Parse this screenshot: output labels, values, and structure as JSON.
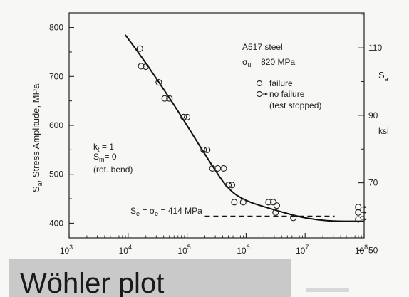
{
  "caption": "Wöhler plot",
  "chart_data": {
    "type": "scatter",
    "x_scale": "log",
    "xlim_exp": [
      3,
      8
    ],
    "x_tick_labels": [
      "10",
      "10",
      "10",
      "10",
      "10",
      "10"
    ],
    "x_tick_exponents": [
      "3",
      "4",
      "5",
      "6",
      "7",
      "8"
    ],
    "ylabel": "S",
    "ylabel_sub": "a",
    "ylabel_rest": ", Stress Amplitude, MPa",
    "ylim": [
      370,
      830
    ],
    "y_ticks": [
      400,
      500,
      600,
      700,
      800
    ],
    "y_tick_labels": [
      "400",
      "500",
      "600",
      "700",
      "800"
    ],
    "right_axis": {
      "label": "S",
      "label_sub": "a",
      "unit": "ksi",
      "ticks": [
        50,
        70,
        90,
        110
      ],
      "tick_labels": [
        "50",
        "70",
        "90",
        "110"
      ],
      "mpa_per_ksi": 6.895
    },
    "annotations": {
      "material": "A517 steel",
      "sigma_u_sym": "σ",
      "sigma_u_sub": "u",
      "sigma_u_val": " = 820 MPa",
      "legend_failure": "failure",
      "legend_no_failure": "no failure",
      "legend_no_failure_note": "(test stopped)",
      "kt_sym": "k",
      "kt_sub": "t",
      "kt_val": " = 1",
      "sm_sym": "S",
      "sm_sub": "m",
      "sm_val": "= 0",
      "rot": "(rot. bend)",
      "se_sym": "S",
      "se_sub": "e",
      "se_eq": " = σ",
      "se_sub2": "e",
      "se_val": " = 414 MPa"
    },
    "fit_curve": [
      {
        "logN": 3.95,
        "S": 785
      },
      {
        "logN": 4.2,
        "S": 745
      },
      {
        "logN": 4.5,
        "S": 692
      },
      {
        "logN": 4.8,
        "S": 638
      },
      {
        "logN": 5.1,
        "S": 580
      },
      {
        "logN": 5.4,
        "S": 522
      },
      {
        "logN": 5.7,
        "S": 468
      },
      {
        "logN": 6.0,
        "S": 445
      },
      {
        "logN": 6.4,
        "S": 430
      },
      {
        "logN": 6.9,
        "S": 413
      },
      {
        "logN": 7.2,
        "S": 407
      },
      {
        "logN": 7.5,
        "S": 404
      },
      {
        "logN": 8.0,
        "S": 404
      }
    ],
    "endurance_line": {
      "logN_start": 5.3,
      "logN_end": 7.5,
      "S": 414
    },
    "failure_points": [
      {
        "logN": 4.2,
        "S": 757
      },
      {
        "logN": 4.22,
        "S": 721
      },
      {
        "logN": 4.3,
        "S": 720
      },
      {
        "logN": 4.52,
        "S": 688
      },
      {
        "logN": 4.62,
        "S": 655
      },
      {
        "logN": 4.7,
        "S": 655
      },
      {
        "logN": 4.94,
        "S": 617
      },
      {
        "logN": 5.0,
        "S": 617
      },
      {
        "logN": 5.28,
        "S": 550
      },
      {
        "logN": 5.34,
        "S": 550
      },
      {
        "logN": 5.43,
        "S": 512
      },
      {
        "logN": 5.52,
        "S": 512
      },
      {
        "logN": 5.62,
        "S": 512
      },
      {
        "logN": 5.7,
        "S": 478
      },
      {
        "logN": 5.76,
        "S": 478
      },
      {
        "logN": 5.8,
        "S": 443
      },
      {
        "logN": 5.95,
        "S": 443
      },
      {
        "logN": 6.38,
        "S": 443
      },
      {
        "logN": 6.46,
        "S": 443
      },
      {
        "logN": 6.5,
        "S": 422
      },
      {
        "logN": 6.52,
        "S": 436
      },
      {
        "logN": 6.8,
        "S": 411
      }
    ],
    "no_failure_points": [
      {
        "logN": 7.9,
        "S": 433
      },
      {
        "logN": 7.9,
        "S": 422
      },
      {
        "logN": 7.9,
        "S": 408
      }
    ]
  }
}
